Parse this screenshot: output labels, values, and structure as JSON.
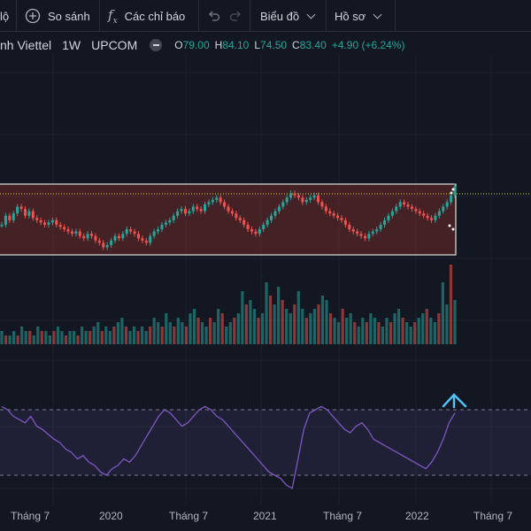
{
  "toolbar": {
    "partial_label": "lộ",
    "compare_label": "So sánh",
    "indicators_label": "Các chỉ báo",
    "chart_type_label": "Biểu đồ",
    "profile_label": "Hồ sơ"
  },
  "legend": {
    "symbol_name": "nh Viettel",
    "interval": "1W",
    "exchange": "UPCOM",
    "open_label": "O",
    "open": "79.00",
    "high_label": "H",
    "high": "84.10",
    "low_label": "L",
    "low": "74.50",
    "close_label": "C",
    "close": "83.40",
    "change": "+4.90 (+6.24%)"
  },
  "colors": {
    "background": "#131722",
    "up": "#26a69a",
    "down": "#ef5350",
    "rsi_line": "#7e57c2",
    "arrow": "#4fc3f7",
    "box": "#e0e0e0",
    "box_fill": "#6b2a28"
  },
  "icons": [
    "plus-circle-icon",
    "fx-icon",
    "undo-icon",
    "redo-icon",
    "chevron-down-icon"
  ],
  "axis": {
    "ticks": [
      "Tháng 7",
      "2020",
      "Tháng 7",
      "2021",
      "Tháng 7",
      "2022",
      "Tháng 7"
    ]
  },
  "chart_data": {
    "type": "candlestick",
    "interval": "1W",
    "price_series_approx": [
      66,
      70,
      68,
      71,
      74,
      73,
      70,
      72,
      69,
      68,
      67,
      66,
      67,
      68,
      66,
      65,
      64,
      63,
      62,
      63,
      61,
      60,
      62,
      61,
      59,
      58,
      56,
      57,
      59,
      61,
      60,
      62,
      64,
      63,
      62,
      60,
      59,
      58,
      61,
      63,
      64,
      66,
      67,
      68,
      70,
      72,
      73,
      71,
      72,
      74,
      73,
      72,
      75,
      76,
      77,
      78,
      76,
      74,
      72,
      71,
      69,
      68,
      66,
      64,
      63,
      62,
      64,
      66,
      68,
      70,
      72,
      74,
      76,
      78,
      80,
      79,
      78,
      76,
      77,
      78,
      79,
      76,
      74,
      72,
      71,
      70,
      69,
      68,
      66,
      64,
      63,
      62,
      61,
      60,
      62,
      63,
      64,
      66,
      68,
      70,
      72,
      74,
      76,
      75,
      74,
      73,
      72,
      71,
      70,
      69,
      68,
      70,
      72,
      74,
      76,
      79,
      83
    ],
    "volume_approx": [
      3,
      2,
      2,
      3,
      2,
      4,
      3,
      3,
      2,
      4,
      3,
      3,
      2,
      3,
      4,
      3,
      2,
      3,
      3,
      2,
      4,
      3,
      3,
      4,
      5,
      3,
      4,
      3,
      4,
      5,
      6,
      4,
      3,
      4,
      3,
      4,
      3,
      4,
      6,
      5,
      4,
      7,
      5,
      4,
      6,
      5,
      4,
      7,
      8,
      6,
      5,
      4,
      6,
      5,
      8,
      7,
      4,
      5,
      6,
      7,
      12,
      9,
      10,
      8,
      6,
      7,
      14,
      11,
      9,
      13,
      10,
      8,
      7,
      9,
      12,
      8,
      6,
      7,
      8,
      9,
      11,
      10,
      7,
      6,
      5,
      8,
      6,
      7,
      5,
      4,
      6,
      5,
      7,
      6,
      5,
      4,
      6,
      5,
      7,
      8,
      6,
      5,
      4,
      5,
      6,
      7,
      8,
      6,
      5,
      7,
      14,
      9,
      18,
      10
    ],
    "rsi_approx": [
      72,
      70,
      66,
      64,
      62,
      66,
      60,
      58,
      55,
      52,
      50,
      46,
      44,
      40,
      42,
      38,
      36,
      32,
      30,
      34,
      36,
      40,
      38,
      42,
      48,
      54,
      60,
      66,
      70,
      68,
      64,
      60,
      62,
      66,
      70,
      72,
      70,
      66,
      64,
      60,
      56,
      52,
      48,
      44,
      40,
      36,
      32,
      30,
      28,
      24,
      22,
      40,
      58,
      68,
      70,
      72,
      70,
      66,
      62,
      58,
      56,
      60,
      62,
      58,
      52,
      50,
      48,
      46,
      44,
      42,
      40,
      38,
      36,
      34,
      38,
      44,
      52,
      62,
      68
    ]
  }
}
